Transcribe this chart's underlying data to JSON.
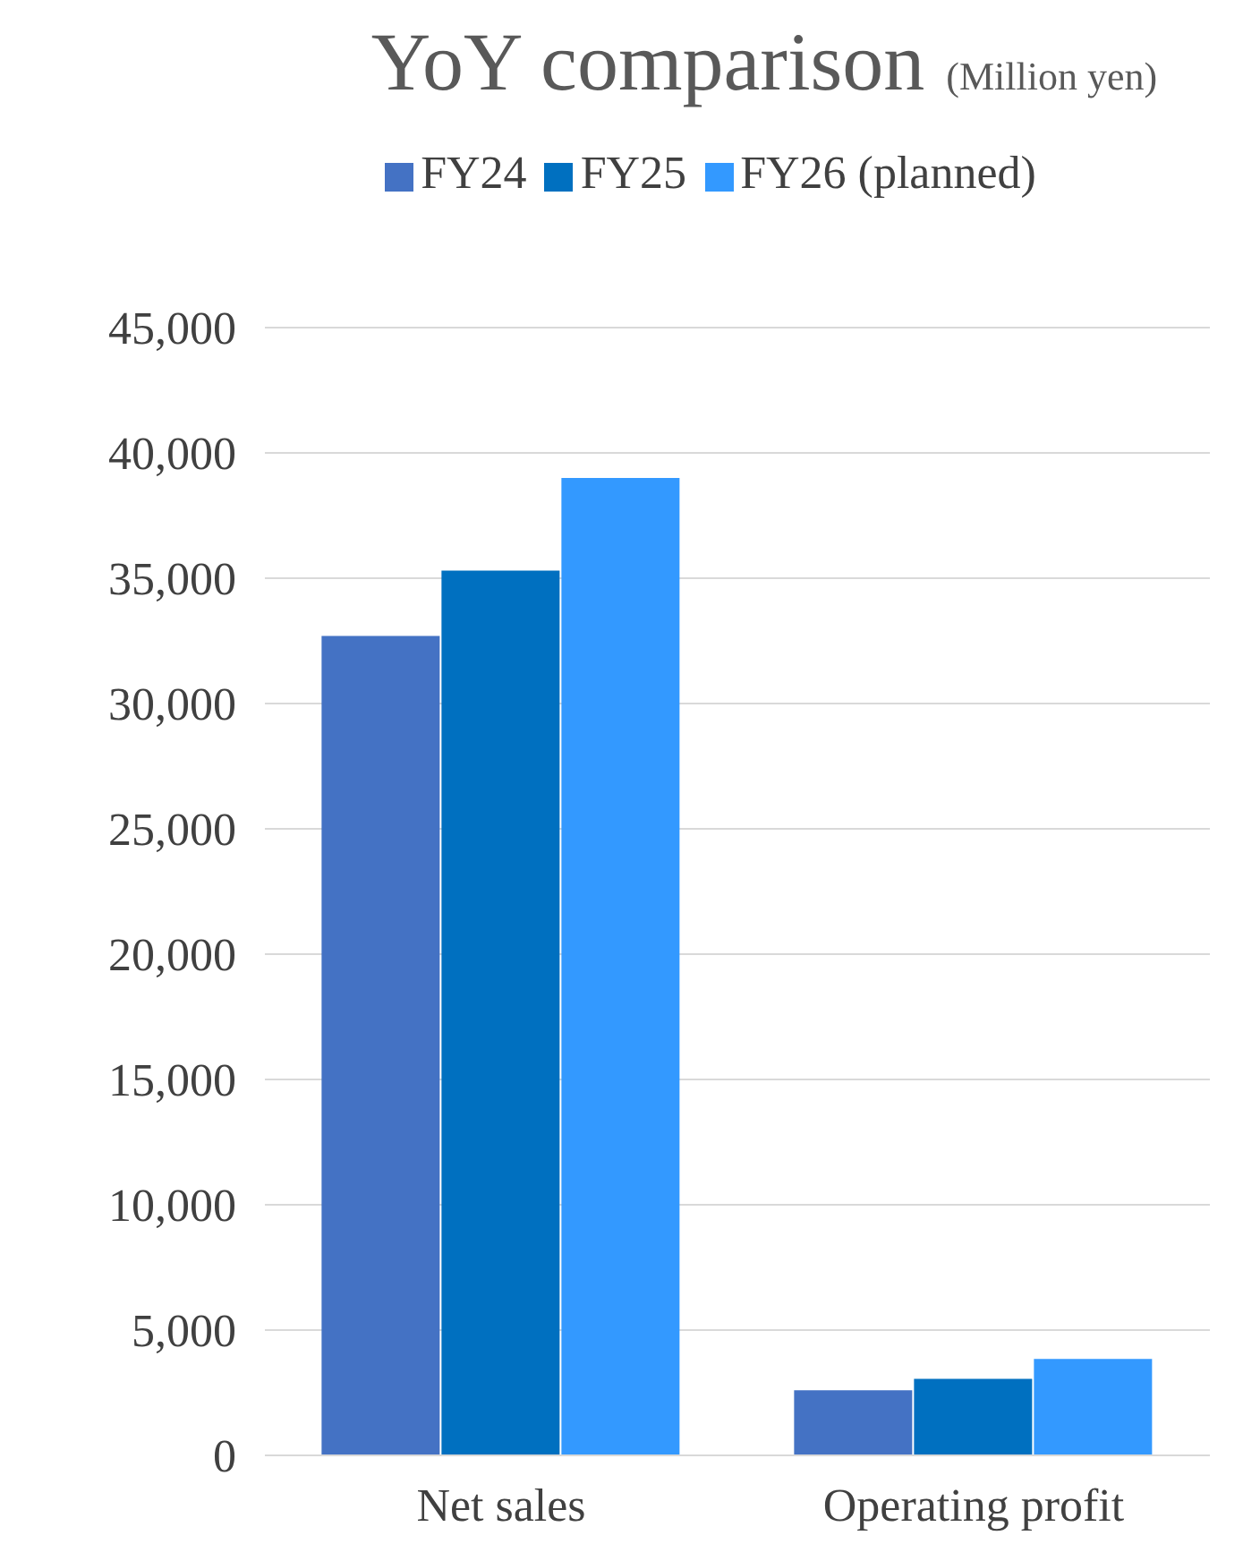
{
  "chart_data": {
    "type": "bar",
    "title": "YoY comparison",
    "subtitle": "(Million yen)",
    "categories": [
      "Net sales",
      "Operating profit"
    ],
    "series": [
      {
        "name": "FY24",
        "color": "#4472c4",
        "values": [
          32700,
          2600
        ]
      },
      {
        "name": "FY25",
        "color": "#0070c0",
        "values": [
          35300,
          3050
        ]
      },
      {
        "name": "FY26 (planned)",
        "color": "#3399ff",
        "values": [
          39000,
          3850
        ]
      }
    ],
    "ylim": [
      0,
      45000
    ],
    "yticks": [
      {
        "value": 0,
        "label": "0"
      },
      {
        "value": 5000,
        "label": "5,000"
      },
      {
        "value": 10000,
        "label": "10,000"
      },
      {
        "value": 15000,
        "label": "15,000"
      },
      {
        "value": 20000,
        "label": "20,000"
      },
      {
        "value": 25000,
        "label": "25,000"
      },
      {
        "value": 30000,
        "label": "30,000"
      },
      {
        "value": 35000,
        "label": "35,000"
      },
      {
        "value": 40000,
        "label": "40,000"
      },
      {
        "value": 45000,
        "label": "45,000"
      }
    ],
    "grid": "y",
    "legend": "top"
  }
}
